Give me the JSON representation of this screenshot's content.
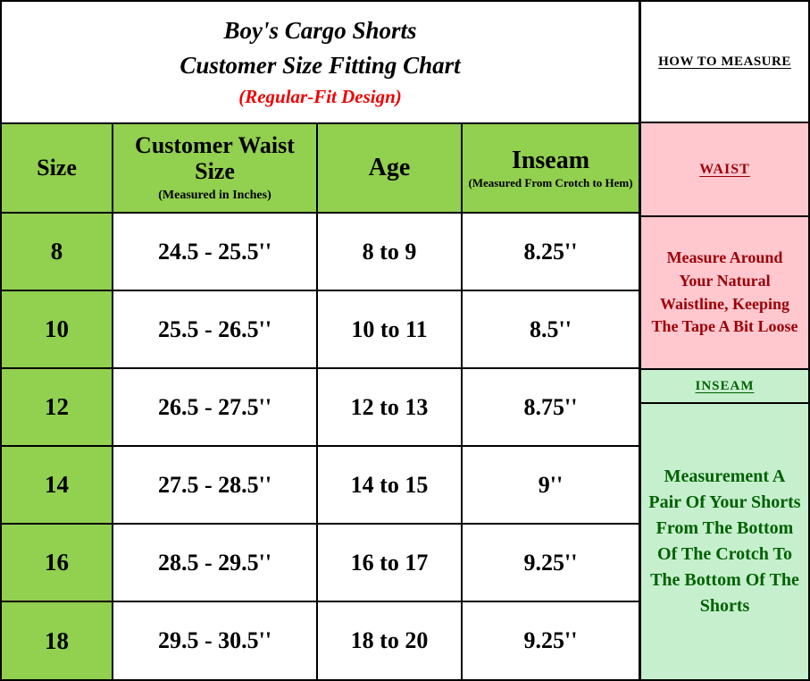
{
  "title": {
    "line1": "Boy's Cargo Shorts",
    "line2": "Customer Size Fitting Chart",
    "line3": "(Regular-Fit Design)"
  },
  "table": {
    "headers": [
      {
        "label": "Size",
        "sub": ""
      },
      {
        "label": "Customer Waist Size",
        "sub": "(Measured in Inches)"
      },
      {
        "label": "Age",
        "sub": ""
      },
      {
        "label": "Inseam",
        "sub": "(Measured From Crotch to Hem)"
      }
    ],
    "rows": [
      {
        "size": "8",
        "waist": "24.5 - 25.5''",
        "age": "8 to 9",
        "inseam": "8.25''"
      },
      {
        "size": "10",
        "waist": "25.5 - 26.5''",
        "age": "10 to 11",
        "inseam": "8.5''"
      },
      {
        "size": "12",
        "waist": "26.5 - 27.5''",
        "age": "12 to 13",
        "inseam": "8.75''"
      },
      {
        "size": "14",
        "waist": "27.5 - 28.5''",
        "age": "14 to 15",
        "inseam": "9''"
      },
      {
        "size": "16",
        "waist": "28.5 - 29.5''",
        "age": "16 to 17",
        "inseam": "9.25''"
      },
      {
        "size": "18",
        "waist": "29.5 - 30.5''",
        "age": "18 to 20",
        "inseam": "9.25''"
      }
    ]
  },
  "how_to_measure": {
    "title": "HOW TO MEASURE",
    "waist": {
      "label": "WAIST",
      "text": "Measure Around Your Natural Waistline, Keeping The Tape A Bit Loose"
    },
    "inseam": {
      "label": "INSEAM",
      "text": "Measurement A Pair Of Your Shorts From The Bottom Of The Crotch To The Bottom Of The Shorts"
    }
  },
  "colors": {
    "header_green": "#92D050",
    "pink": "#FFC7CE",
    "light_green": "#C6EFCE",
    "dark_red_text": "#9C0006",
    "dark_green_text": "#006100",
    "subtitle_red": "#EE0000",
    "border": "#000000"
  }
}
